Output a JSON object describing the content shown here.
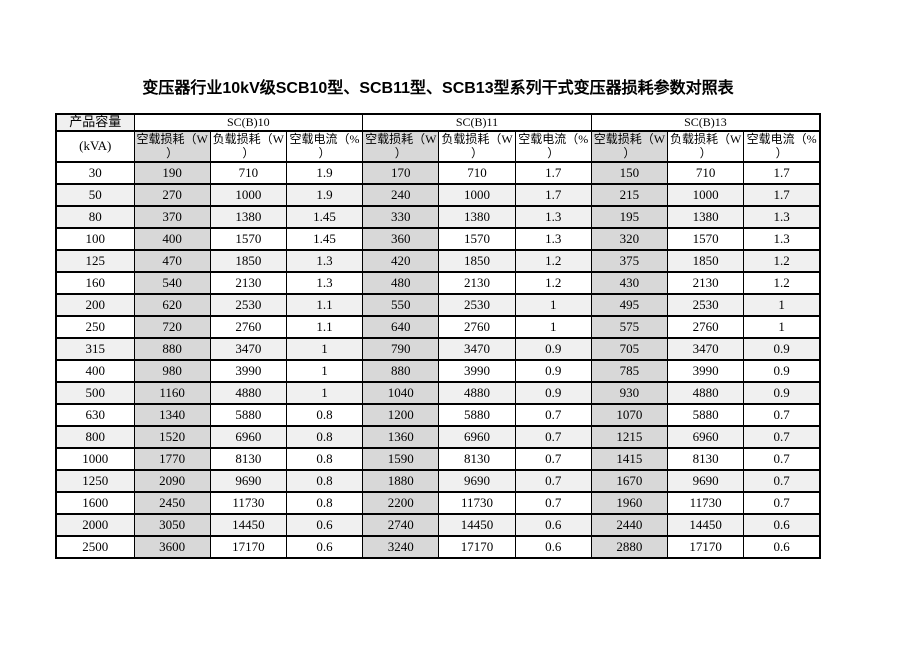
{
  "title": "变压器行业10kV级SCB10型、SCB11型、SCB13型系列干式变压器损耗参数对照表",
  "colors": {
    "no_load_column_bg": "#d8d8d8",
    "stripe_row_bg": "#f0f0f0",
    "border": "#000000",
    "page_bg": "#ffffff"
  },
  "table": {
    "corner_header": "产品容量",
    "corner_subheader": "(kVA)",
    "groups": [
      {
        "name": "SC(B)10"
      },
      {
        "name": "SC(B)11"
      },
      {
        "name": "SC(B)13"
      }
    ],
    "sub_headers": [
      "空载损耗（W\n）",
      "负载损耗（W\n）",
      "空载电流（%\n）"
    ],
    "rows": [
      {
        "capacity": "30",
        "values": [
          "190",
          "710",
          "1.9",
          "170",
          "710",
          "1.7",
          "150",
          "710",
          "1.7"
        ],
        "shaded": false
      },
      {
        "capacity": "50",
        "values": [
          "270",
          "1000",
          "1.9",
          "240",
          "1000",
          "1.7",
          "215",
          "1000",
          "1.7"
        ],
        "shaded": true
      },
      {
        "capacity": "80",
        "values": [
          "370",
          "1380",
          "1.45",
          "330",
          "1380",
          "1.3",
          "195",
          "1380",
          "1.3"
        ],
        "shaded": true
      },
      {
        "capacity": "100",
        "values": [
          "400",
          "1570",
          "1.45",
          "360",
          "1570",
          "1.3",
          "320",
          "1570",
          "1.3"
        ],
        "shaded": false
      },
      {
        "capacity": "125",
        "values": [
          "470",
          "1850",
          "1.3",
          "420",
          "1850",
          "1.2",
          "375",
          "1850",
          "1.2"
        ],
        "shaded": true
      },
      {
        "capacity": "160",
        "values": [
          "540",
          "2130",
          "1.3",
          "480",
          "2130",
          "1.2",
          "430",
          "2130",
          "1.2"
        ],
        "shaded": false
      },
      {
        "capacity": "200",
        "values": [
          "620",
          "2530",
          "1.1",
          "550",
          "2530",
          "1",
          "495",
          "2530",
          "1"
        ],
        "shaded": true
      },
      {
        "capacity": "250",
        "values": [
          "720",
          "2760",
          "1.1",
          "640",
          "2760",
          "1",
          "575",
          "2760",
          "1"
        ],
        "shaded": false
      },
      {
        "capacity": "315",
        "values": [
          "880",
          "3470",
          "1",
          "790",
          "3470",
          "0.9",
          "705",
          "3470",
          "0.9"
        ],
        "shaded": true
      },
      {
        "capacity": "400",
        "values": [
          "980",
          "3990",
          "1",
          "880",
          "3990",
          "0.9",
          "785",
          "3990",
          "0.9"
        ],
        "shaded": false
      },
      {
        "capacity": "500",
        "values": [
          "1160",
          "4880",
          "1",
          "1040",
          "4880",
          "0.9",
          "930",
          "4880",
          "0.9"
        ],
        "shaded": true
      },
      {
        "capacity": "630",
        "values": [
          "1340",
          "5880",
          "0.8",
          "1200",
          "5880",
          "0.7",
          "1070",
          "5880",
          "0.7"
        ],
        "shaded": false
      },
      {
        "capacity": "800",
        "values": [
          "1520",
          "6960",
          "0.8",
          "1360",
          "6960",
          "0.7",
          "1215",
          "6960",
          "0.7"
        ],
        "shaded": true
      },
      {
        "capacity": "1000",
        "values": [
          "1770",
          "8130",
          "0.8",
          "1590",
          "8130",
          "0.7",
          "1415",
          "8130",
          "0.7"
        ],
        "shaded": false
      },
      {
        "capacity": "1250",
        "values": [
          "2090",
          "9690",
          "0.8",
          "1880",
          "9690",
          "0.7",
          "1670",
          "9690",
          "0.7"
        ],
        "shaded": true
      },
      {
        "capacity": "1600",
        "values": [
          "2450",
          "11730",
          "0.8",
          "2200",
          "11730",
          "0.7",
          "1960",
          "11730",
          "0.7"
        ],
        "shaded": false
      },
      {
        "capacity": "2000",
        "values": [
          "3050",
          "14450",
          "0.6",
          "2740",
          "14450",
          "0.6",
          "2440",
          "14450",
          "0.6"
        ],
        "shaded": true
      },
      {
        "capacity": "2500",
        "values": [
          "3600",
          "17170",
          "0.6",
          "3240",
          "17170",
          "0.6",
          "2880",
          "17170",
          "0.6"
        ],
        "shaded": false
      }
    ]
  }
}
